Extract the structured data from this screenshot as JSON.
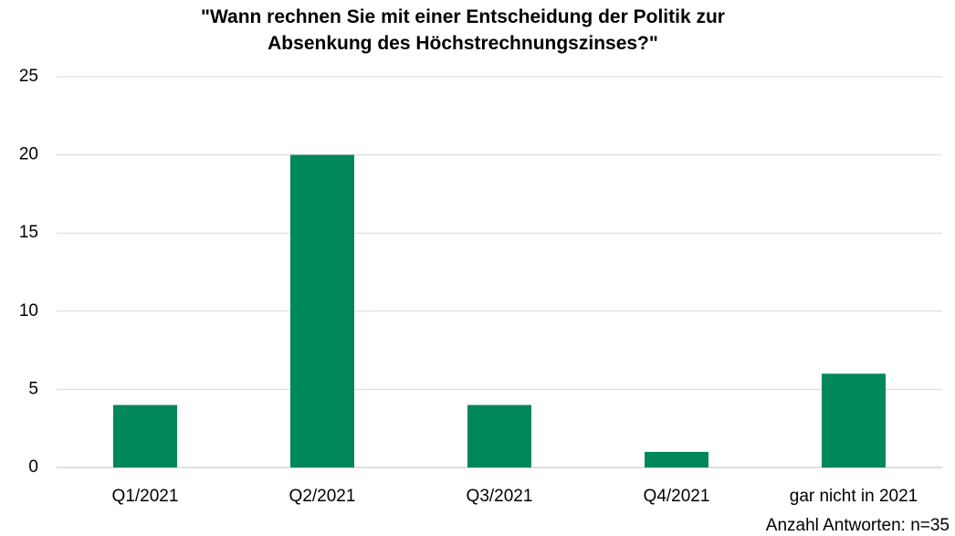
{
  "chart_data": {
    "type": "bar",
    "title": "\"Wann rechnen Sie mit einer Entscheidung der Politik zur\nAbsenkung des Höchstrechnungszinses?\"",
    "categories": [
      "Q1/2021",
      "Q2/2021",
      "Q3/2021",
      "Q4/2021",
      "gar nicht in 2021"
    ],
    "values": [
      4,
      20,
      4,
      1,
      6
    ],
    "color": "#00875a",
    "ylim": [
      0,
      25
    ],
    "yticks": [
      0,
      5,
      10,
      15,
      20,
      25
    ],
    "grid": true,
    "annotation": "Anzahl Antworten: n=35"
  }
}
